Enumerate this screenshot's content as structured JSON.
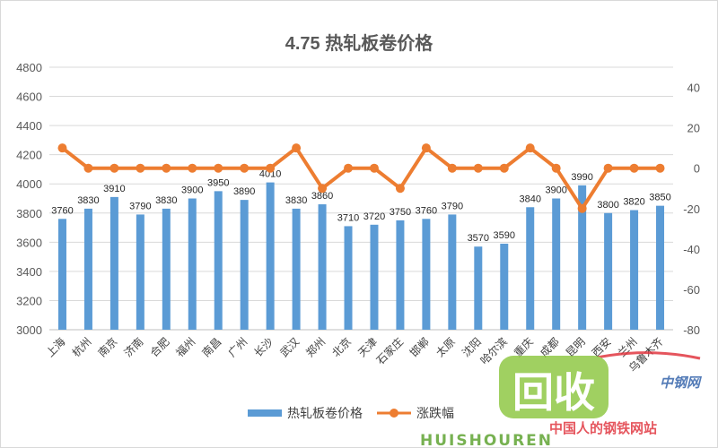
{
  "chart_data": {
    "type": "bar+line",
    "title": "4.75 热轧板卷价格",
    "categories": [
      "上海",
      "杭州",
      "南京",
      "济南",
      "合肥",
      "福州",
      "南昌",
      "广州",
      "长沙",
      "武汉",
      "郑州",
      "北京",
      "天津",
      "石家庄",
      "邯郸",
      "太原",
      "沈阳",
      "哈尔滨",
      "重庆",
      "成都",
      "昆明",
      "西安",
      "兰州",
      "乌鲁木齐"
    ],
    "series": [
      {
        "name": "热轧板卷价格",
        "type": "bar",
        "axis": "left",
        "color": "#5b9bd5",
        "values": [
          3760,
          3830,
          3910,
          3790,
          3830,
          3900,
          3950,
          3890,
          4010,
          3830,
          3860,
          3710,
          3720,
          3750,
          3760,
          3790,
          3570,
          3590,
          3840,
          3900,
          3990,
          3800,
          3820,
          3850
        ]
      },
      {
        "name": "涨跌幅",
        "type": "line",
        "axis": "right",
        "color": "#ed7d31",
        "values": [
          10,
          0,
          0,
          0,
          0,
          0,
          0,
          0,
          0,
          10,
          -10,
          0,
          0,
          -10,
          10,
          0,
          0,
          0,
          10,
          0,
          -20,
          0,
          0,
          0
        ]
      }
    ],
    "y_left": {
      "min": 3000,
      "max": 4800,
      "ticks": [
        "3000",
        "3200",
        "3400",
        "3600",
        "3800",
        "4000",
        "4200",
        "4400",
        "4600",
        "4800"
      ]
    },
    "y_right": {
      "min": -80,
      "max": 50,
      "ticks": [
        "-80",
        "-60",
        "-40",
        "-20",
        "0",
        "20",
        "40"
      ]
    },
    "grid": true,
    "legend_position": "bottom"
  },
  "watermark": {
    "logo_text": "回收",
    "brand_text": "中钢网",
    "site_text": "中国人的钢铁网站",
    "pinyin_text": "HUISHOUREN"
  }
}
